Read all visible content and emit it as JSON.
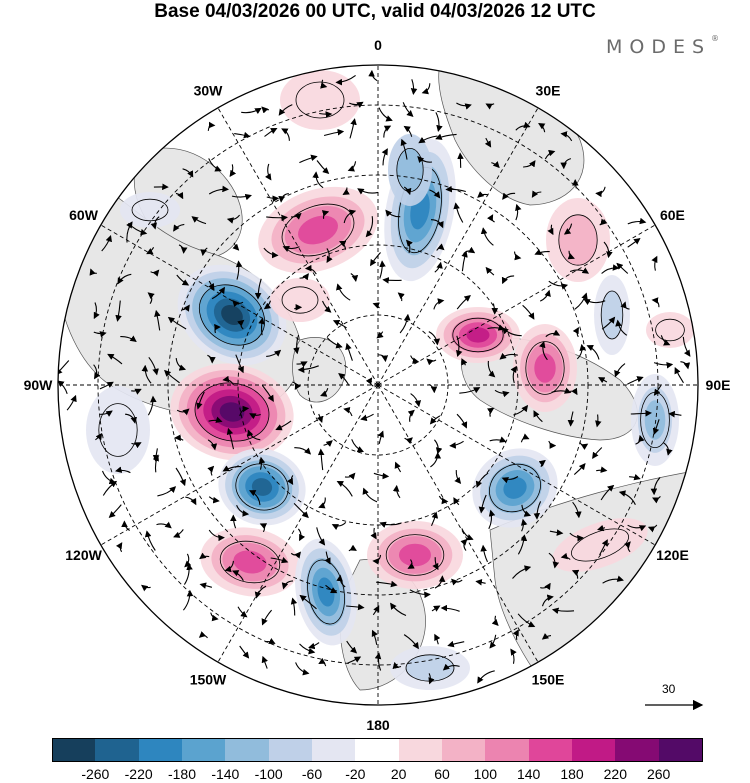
{
  "title": "Base 04/03/2026 00 UTC, valid 04/03/2026 12 UTC",
  "brand": {
    "name": "MODES",
    "mark": "®"
  },
  "longitude_labels": [
    "0",
    "30E",
    "60E",
    "90E",
    "120E",
    "150E",
    "180",
    "150W",
    "120W",
    "90W",
    "60W",
    "30W"
  ],
  "reference_vector": {
    "value": "30",
    "icon": "arrow-right-icon"
  },
  "colorbar": {
    "ticks": [
      "-260",
      "-220",
      "-180",
      "-140",
      "-100",
      "-60",
      "-20",
      "20",
      "60",
      "100",
      "140",
      "180",
      "220",
      "260"
    ],
    "colors": [
      "#163f5c",
      "#1f6390",
      "#2e86bf",
      "#5ba3cf",
      "#91bcdc",
      "#bfd0e8",
      "#e4e6f2",
      "#ffffff",
      "#f8d8de",
      "#f3b2c6",
      "#ec84b0",
      "#e0469a",
      "#c11a86",
      "#850a73",
      "#530a67"
    ]
  },
  "colors": {
    "land": "#e7e7e7",
    "coast": "#555555",
    "grid": "#000000"
  }
}
